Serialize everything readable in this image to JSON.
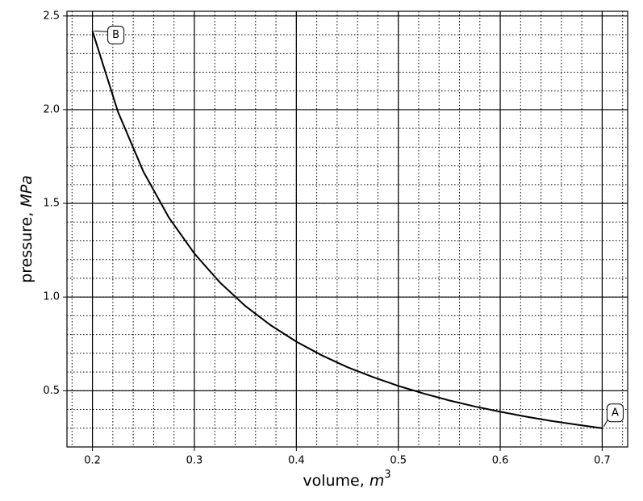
{
  "chart_data": {
    "type": "line",
    "xlabel": [
      "volume, ",
      "m",
      "3"
    ],
    "ylabel": [
      "pressure, ",
      "MPa"
    ],
    "x": [
      0.2,
      0.225,
      0.25,
      0.275,
      0.3,
      0.325,
      0.35,
      0.375,
      0.4,
      0.425,
      0.45,
      0.475,
      0.5,
      0.525,
      0.55,
      0.575,
      0.6,
      0.625,
      0.65,
      0.675,
      0.7
    ],
    "values": [
      2.42,
      1.989,
      1.669,
      1.424,
      1.232,
      1.078,
      0.952,
      0.849,
      0.762,
      0.689,
      0.626,
      0.573,
      0.526,
      0.485,
      0.448,
      0.416,
      0.388,
      0.362,
      0.339,
      0.319,
      0.3
    ],
    "color": "#000000",
    "xlim": [
      0.175,
      0.725
    ],
    "ylim": [
      0.2,
      2.525
    ],
    "xticks": [
      0.2,
      0.3,
      0.4,
      0.5,
      0.6,
      0.7
    ],
    "yticks": [
      0.5,
      {
        "value": 1,
        "label": "1.0"
      },
      1.5,
      {
        "value": 2,
        "label": "2.0"
      },
      2.5
    ],
    "xminor": [
      0.18,
      0.2,
      0.22,
      0.24,
      0.26,
      0.28,
      0.3,
      0.32,
      0.34,
      0.36,
      0.38,
      0.4,
      0.42,
      0.44,
      0.46,
      0.48,
      0.5,
      0.52,
      0.54,
      0.56,
      0.58,
      0.6,
      0.62,
      0.64,
      0.66,
      0.68,
      0.7,
      0.72
    ],
    "yminor": [
      0.2,
      0.3,
      0.4,
      0.5,
      0.6,
      0.7,
      0.8,
      0.9,
      1,
      1.1,
      1.2,
      1.3,
      1.4,
      1.5,
      1.6,
      1.7,
      1.8,
      1.9,
      2,
      2.1,
      2.2,
      2.3,
      2.4,
      2.5
    ],
    "grid": true,
    "annotations": [
      {
        "text": "A",
        "x": 0.7,
        "y": 0.3
      },
      {
        "text": "B",
        "x": 0.2,
        "y": 2.42
      }
    ]
  }
}
